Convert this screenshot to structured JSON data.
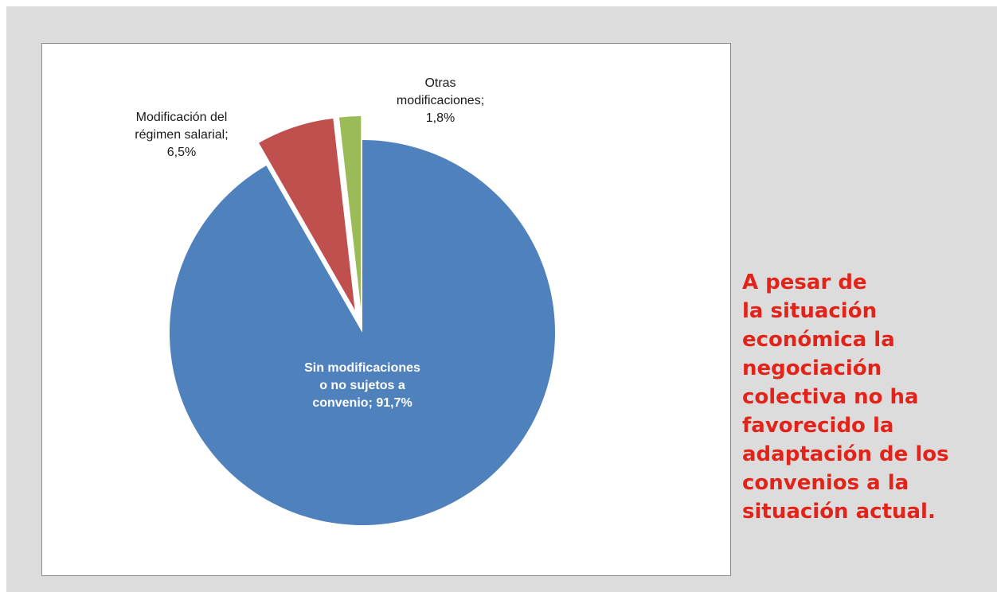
{
  "chart_data": {
    "type": "pie",
    "exploded": true,
    "slices": [
      {
        "label": "Sin modificaciones o no sujetos a convenio",
        "value": 91.7,
        "value_label": "91,7%",
        "color": "#4f81bd",
        "label_lines": [
          "Sin modificaciones",
          "o no sujetos a",
          "convenio; 91,7%"
        ]
      },
      {
        "label": "Modificación del régimen salarial",
        "value": 6.5,
        "value_label": "6,5%",
        "color": "#c0504d",
        "label_lines": [
          "Modificación del",
          "régimen salarial;",
          "6,5%"
        ]
      },
      {
        "label": "Otras modificaciones",
        "value": 1.8,
        "value_label": "1,8%",
        "color": "#9bbb59",
        "label_lines": [
          "Otras",
          "modificaciones;",
          "1,8%"
        ]
      }
    ]
  },
  "message": {
    "lines": [
      "A pesar de",
      "la situación",
      "económica la",
      "negociación",
      "colectiva no ha",
      "favorecido la",
      "adaptación de los",
      "convenios a la",
      "situación actual."
    ],
    "color": "#e2231a"
  }
}
